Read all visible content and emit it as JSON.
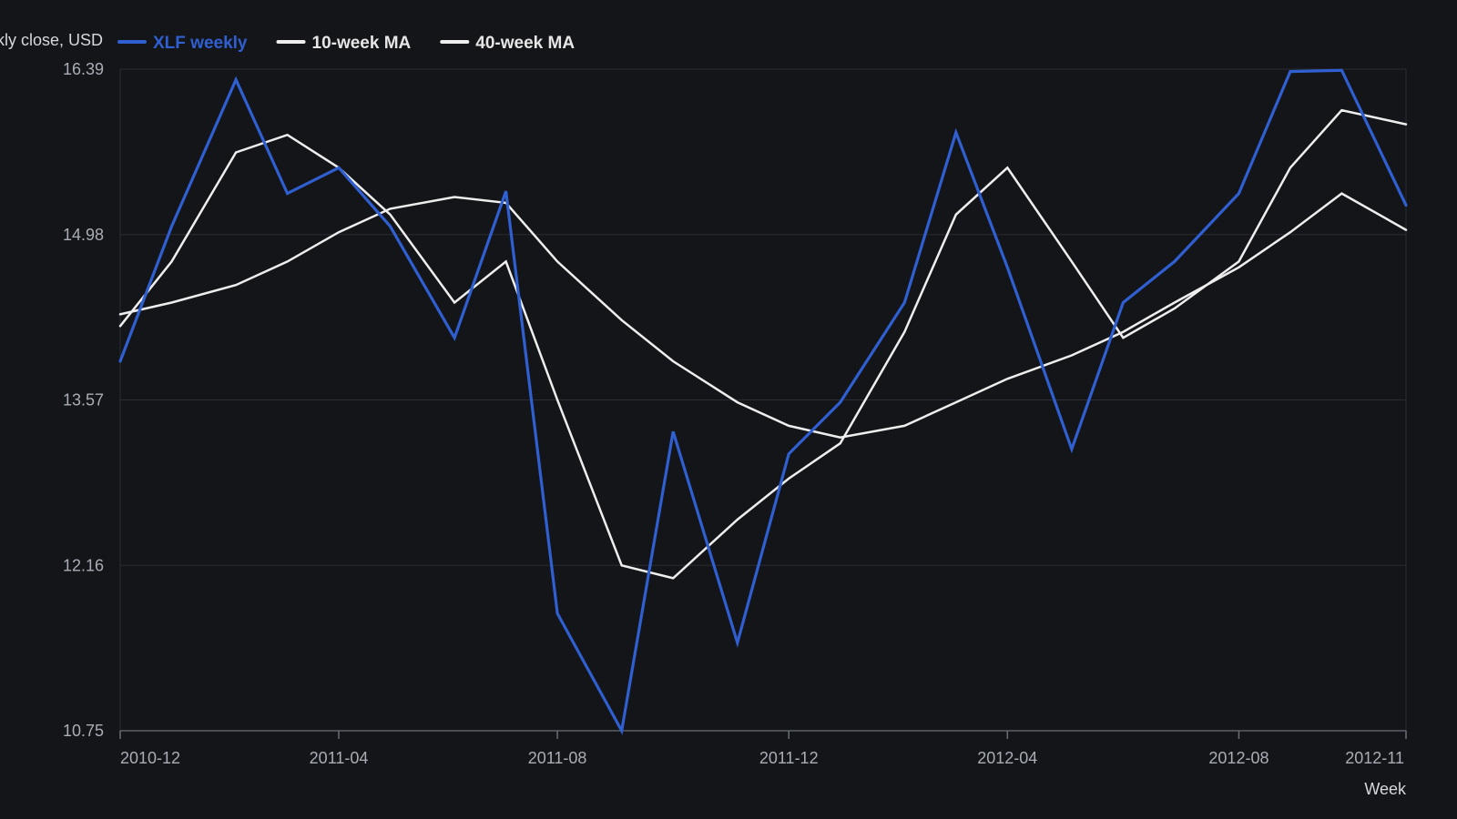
{
  "chart_data": {
    "type": "line",
    "ylabel": "Weekly close, USD",
    "xlabel": "Week",
    "ylim": [
      10.75,
      16.39
    ],
    "yticks": [
      "10.75",
      "12.16",
      "13.57",
      "14.98",
      "16.39"
    ],
    "x": [
      "2010-12-06",
      "2011-01-03",
      "2011-02-07",
      "2011-03-07",
      "2011-04-04",
      "2011-05-02",
      "2011-06-06",
      "2011-07-04",
      "2011-08-01",
      "2011-09-05",
      "2011-10-03",
      "2011-11-07",
      "2011-12-05",
      "2012-01-02",
      "2012-02-06",
      "2012-03-05",
      "2012-04-02",
      "2012-05-07",
      "2012-06-04",
      "2012-07-02",
      "2012-08-06",
      "2012-09-03",
      "2012-10-01",
      "2012-11-05"
    ],
    "xticks": [
      {
        "date": "2010-12-06",
        "label": "2010-12"
      },
      {
        "date": "2011-04-04",
        "label": "2011-04"
      },
      {
        "date": "2011-08-01",
        "label": "2011-08"
      },
      {
        "date": "2011-12-05",
        "label": "2011-12"
      },
      {
        "date": "2012-04-02",
        "label": "2012-04"
      },
      {
        "date": "2012-08-06",
        "label": "2012-08"
      },
      {
        "date": "2012-11-05",
        "label": "2012-11"
      }
    ],
    "series": [
      {
        "name": "XLF weekly",
        "color": "#2f5fd0",
        "width": 3.2,
        "values": [
          13.9,
          15.05,
          16.3,
          15.33,
          15.55,
          15.05,
          14.1,
          15.35,
          11.75,
          10.75,
          13.3,
          11.5,
          13.11,
          13.55,
          14.4,
          15.85,
          14.7,
          13.15,
          14.4,
          14.75,
          15.33,
          16.37,
          16.38,
          15.23
        ]
      },
      {
        "name": "10-week MA",
        "color": "#eeeeee",
        "width": 2.5,
        "values": [
          14.2,
          14.75,
          15.68,
          15.83,
          15.55,
          15.15,
          14.4,
          14.75,
          13.57,
          12.16,
          12.05,
          12.55,
          12.9,
          13.2,
          14.15,
          15.15,
          15.55,
          14.75,
          14.1,
          14.35,
          14.75,
          15.55,
          16.04,
          15.92
        ]
      },
      {
        "name": "40-week MA",
        "color": "#eeeeee",
        "width": 2.5,
        "values": [
          14.3,
          14.4,
          14.55,
          14.75,
          15.0,
          15.2,
          15.3,
          15.25,
          14.75,
          14.25,
          13.9,
          13.55,
          13.35,
          13.25,
          13.35,
          13.55,
          13.75,
          13.95,
          14.15,
          14.4,
          14.7,
          15.0,
          15.33,
          15.02
        ]
      }
    ]
  }
}
